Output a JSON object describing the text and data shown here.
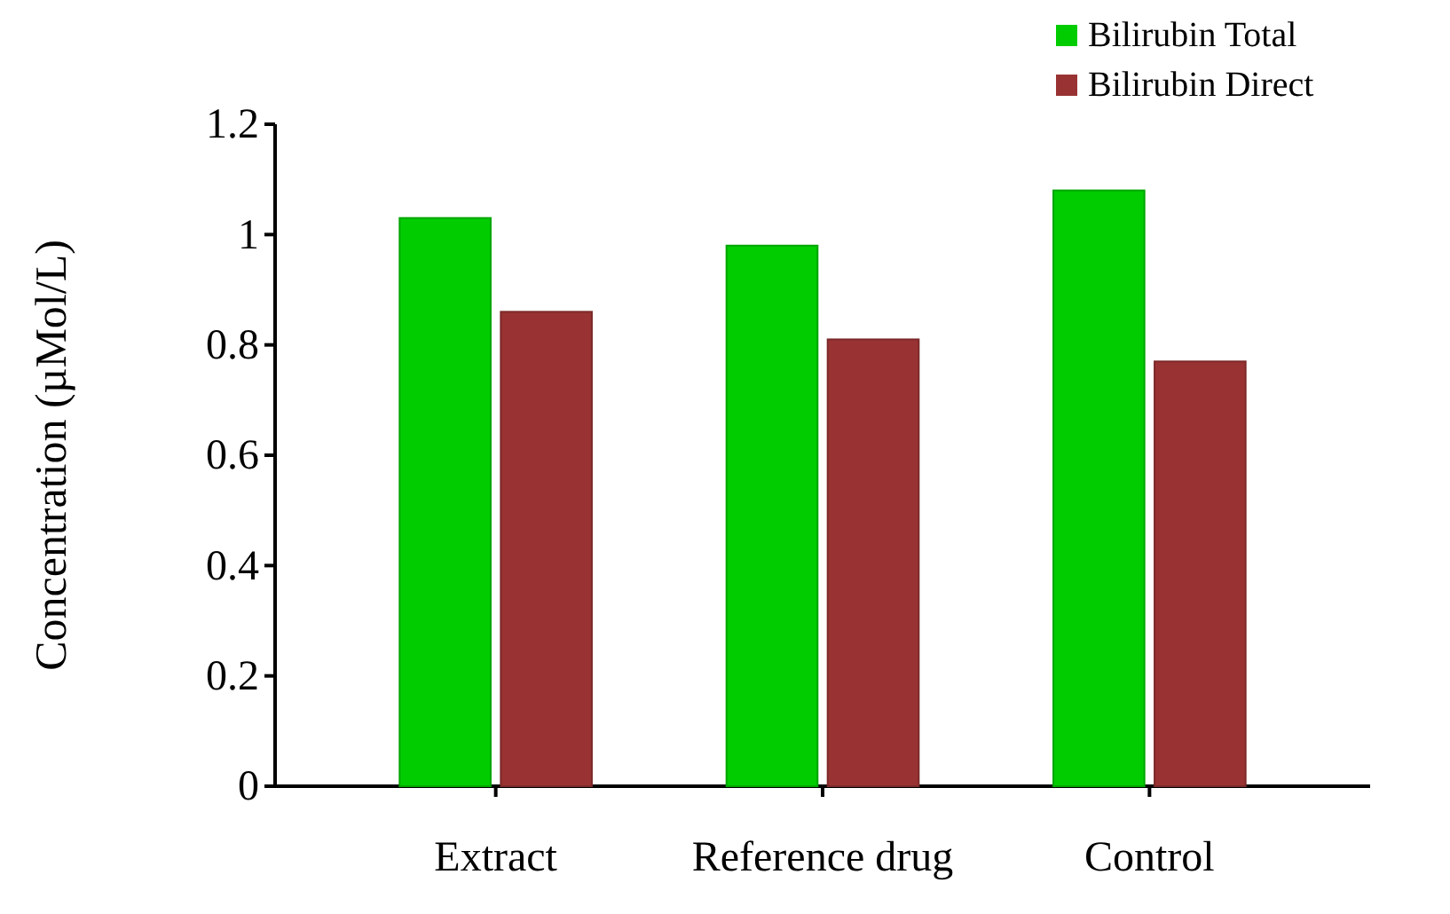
{
  "chart_data": {
    "type": "bar",
    "ylabel": "Concentration (µMol/L)",
    "categories": [
      "Extract",
      "Reference drug",
      "Control"
    ],
    "series": [
      {
        "name": "Bilirubin Total",
        "color": "#00cc00",
        "values": [
          1.03,
          0.98,
          1.08
        ]
      },
      {
        "name": "Bilirubin Direct",
        "color": "#993333",
        "values": [
          0.86,
          0.81,
          0.77
        ]
      }
    ],
    "ylim": [
      0,
      1.2
    ],
    "yticks": [
      0,
      0.2,
      0.4,
      0.6,
      0.8,
      1,
      1.2
    ],
    "legend": "top right",
    "grid": false
  }
}
